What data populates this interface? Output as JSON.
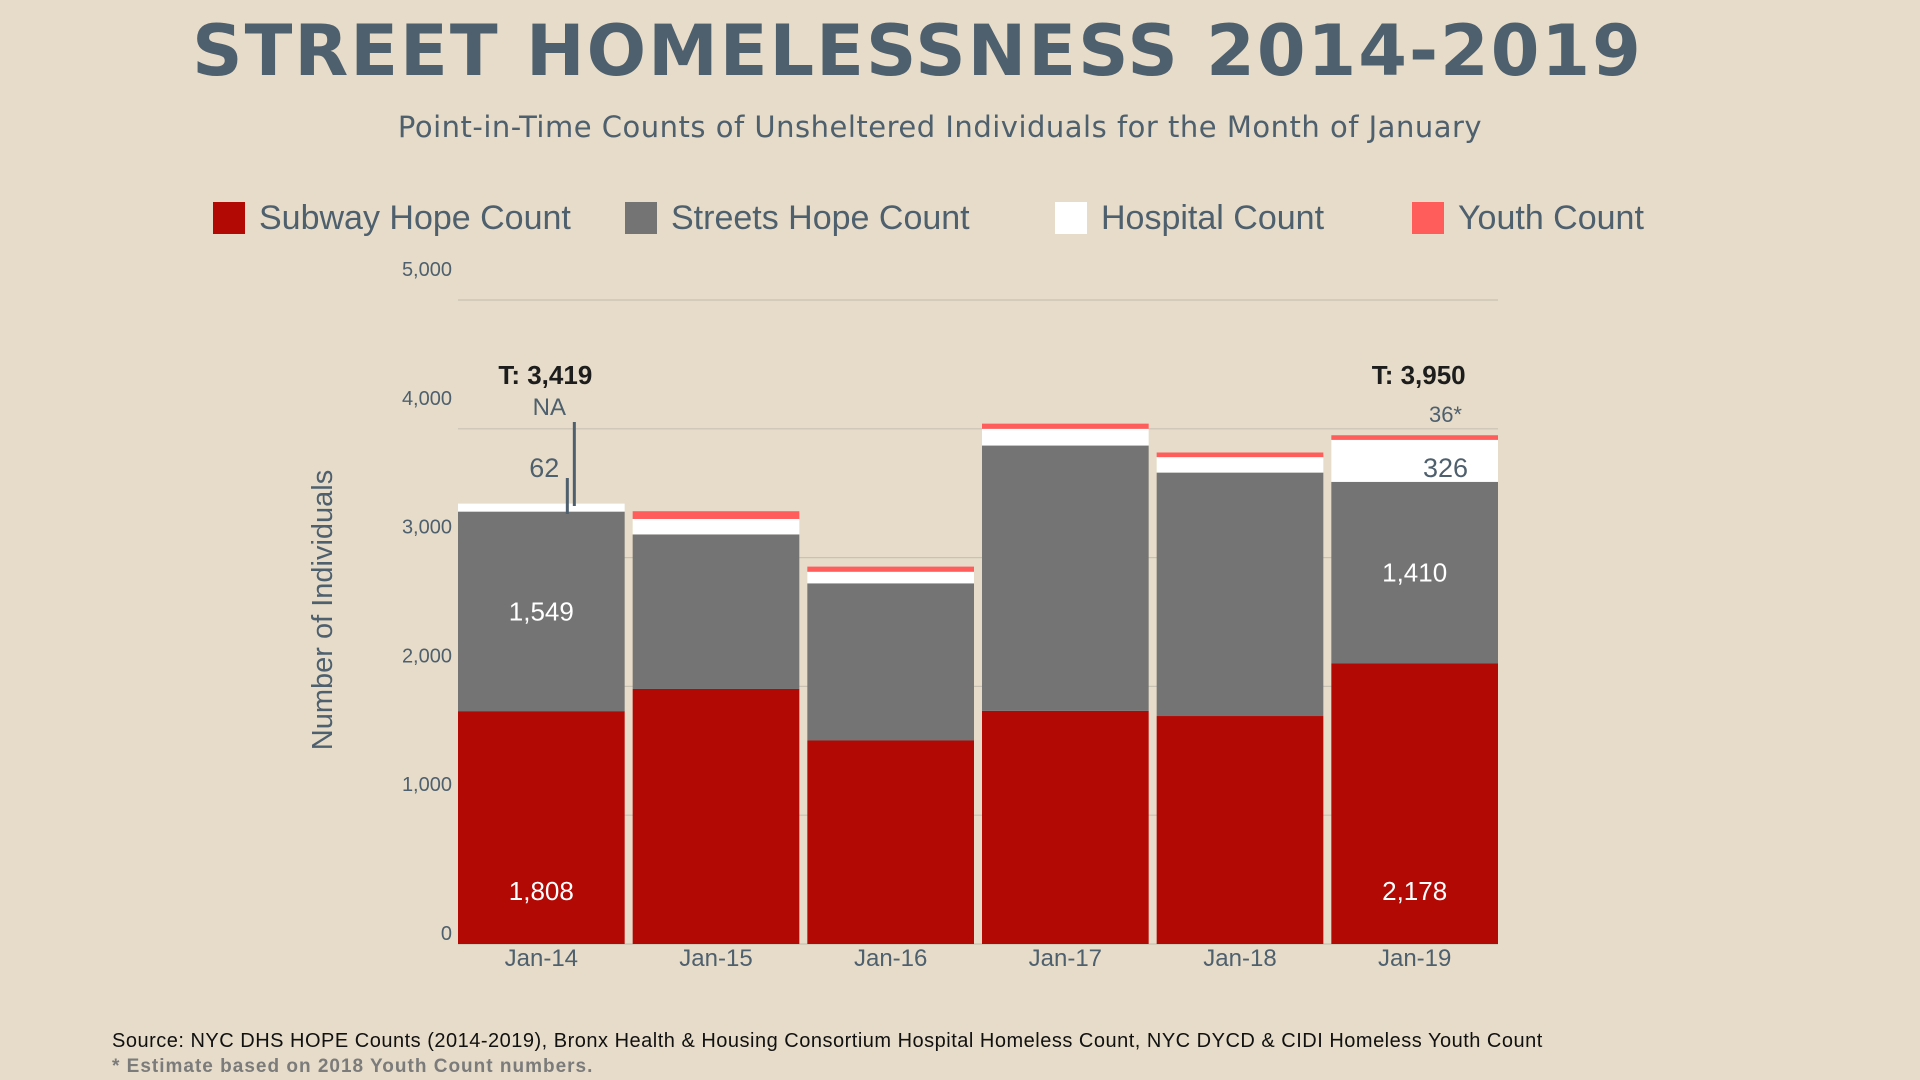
{
  "title": "STREET HOMELESSNESS 2014-2019",
  "subtitle": "Point-in-Time Counts of Unsheltered Individuals for the Month of January",
  "legend": [
    {
      "label": "Subway Hope Count",
      "color": "#b30905"
    },
    {
      "label": "Streets Hope Count",
      "color": "#757474"
    },
    {
      "label": "Hospital Count",
      "color": "#ffffff"
    },
    {
      "label": "Youth Count",
      "color": "#ff5c5c"
    }
  ],
  "chart_data": {
    "type": "bar",
    "stacked": true,
    "categories": [
      "Jan-14",
      "Jan-15",
      "Jan-16",
      "Jan-17",
      "Jan-18",
      "Jan-19"
    ],
    "series": [
      {
        "name": "Subway Hope Count",
        "color": "#b30905",
        "values": [
          1808,
          1980,
          1580,
          1810,
          1770,
          2178
        ]
      },
      {
        "name": "Streets Hope Count",
        "color": "#757474",
        "values": [
          1549,
          1200,
          1220,
          2060,
          1890,
          1410
        ]
      },
      {
        "name": "Hospital Count",
        "color": "#ffffff",
        "values": [
          62,
          120,
          90,
          130,
          120,
          326
        ]
      },
      {
        "name": "Youth Count",
        "color": "#ff5c5c",
        "values": [
          0,
          60,
          40,
          40,
          36,
          36
        ]
      }
    ],
    "ylabel": "Number of Individuals",
    "xlabel": "",
    "ylim": [
      0,
      5000
    ],
    "yticks": [
      0,
      1000,
      2000,
      3000,
      4000,
      5000
    ],
    "ytick_labels": [
      "0",
      "1,000",
      "2,000",
      "3,000",
      "4,000",
      "5,000"
    ],
    "data_labels": [
      {
        "text": "1,808",
        "bar": 0,
        "series": 0,
        "style": "inside"
      },
      {
        "text": "1,549",
        "bar": 0,
        "series": 1,
        "style": "inside"
      },
      {
        "text": "2,178",
        "bar": 5,
        "series": 0,
        "style": "inside"
      },
      {
        "text": "1,410",
        "bar": 5,
        "series": 1,
        "style": "inside"
      }
    ],
    "annotations": [
      {
        "text": "T: 3,419",
        "bar": 0,
        "kind": "total"
      },
      {
        "text": "NA",
        "bar": 0,
        "kind": "youth-note"
      },
      {
        "text": "62",
        "bar": 0,
        "kind": "hospital-note"
      },
      {
        "text": "T: 3,950",
        "bar": 5,
        "kind": "total"
      },
      {
        "text": "36*",
        "bar": 5,
        "kind": "youth-note"
      },
      {
        "text": "326",
        "bar": 5,
        "kind": "hospital-note"
      }
    ],
    "grid": true
  },
  "source": "Source: NYC DHS HOPE Counts (2014-2019), Bronx Health & Housing Consortium Hospital Homeless Count, NYC DYCD & CIDI Homeless Youth Count",
  "footnote": "* Estimate based on 2018 Youth Count numbers."
}
